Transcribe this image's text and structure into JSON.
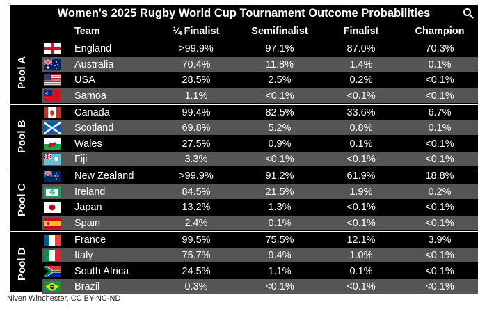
{
  "chart_data": {
    "type": "table",
    "title": "Women's 2025 Rugby World Cup Tournament Outcome Probabilities",
    "columns": [
      "Team",
      "¼ Finalist",
      "Semifinalist",
      "Finalist",
      "Champion"
    ],
    "pools": [
      {
        "name": "Pool A",
        "teams": [
          {
            "team": "England",
            "flag": "england-flag-icon",
            "values": [
              ">99.9%",
              "97.1%",
              "87.0%",
              "70.3%"
            ]
          },
          {
            "team": "Australia",
            "flag": "australia-flag-icon",
            "values": [
              "70.4%",
              "11.8%",
              "1.4%",
              "0.1%"
            ]
          },
          {
            "team": "USA",
            "flag": "usa-flag-icon",
            "values": [
              "28.5%",
              "2.5%",
              "0.2%",
              "<0.1%"
            ]
          },
          {
            "team": "Samoa",
            "flag": "samoa-flag-icon",
            "values": [
              "1.1%",
              "<0.1%",
              "<0.1%",
              "<0.1%"
            ]
          }
        ]
      },
      {
        "name": "Pool B",
        "teams": [
          {
            "team": "Canada",
            "flag": "canada-flag-icon",
            "values": [
              "99.4%",
              "82.5%",
              "33.6%",
              "6.7%"
            ]
          },
          {
            "team": "Scotland",
            "flag": "scotland-flag-icon",
            "values": [
              "69.8%",
              "5.2%",
              "0.8%",
              "0.1%"
            ]
          },
          {
            "team": "Wales",
            "flag": "wales-flag-icon",
            "values": [
              "27.5%",
              "0.9%",
              "0.1%",
              "<0.1%"
            ]
          },
          {
            "team": "Fiji",
            "flag": "fiji-flag-icon",
            "values": [
              "3.3%",
              "<0.1%",
              "<0.1%",
              "<0.1%"
            ]
          }
        ]
      },
      {
        "name": "Pool C",
        "teams": [
          {
            "team": "New Zealand",
            "flag": "new-zealand-flag-icon",
            "values": [
              ">99.9%",
              "91.2%",
              "61.9%",
              "18.8%"
            ]
          },
          {
            "team": "Ireland",
            "flag": "ireland-flag-icon",
            "values": [
              "84.5%",
              "21.5%",
              "1.9%",
              "0.2%"
            ]
          },
          {
            "team": "Japan",
            "flag": "japan-flag-icon",
            "values": [
              "13.2%",
              "1.3%",
              "<0.1%",
              "<0.1%"
            ]
          },
          {
            "team": "Spain",
            "flag": "spain-flag-icon",
            "values": [
              "2.4%",
              "0.1%",
              "<0.1%",
              "<0.1%"
            ]
          }
        ]
      },
      {
        "name": "Pool D",
        "teams": [
          {
            "team": "France",
            "flag": "france-flag-icon",
            "values": [
              "99.5%",
              "75.5%",
              "12.1%",
              "3.9%"
            ]
          },
          {
            "team": "Italy",
            "flag": "italy-flag-icon",
            "values": [
              "75.7%",
              "9.4%",
              "1.0%",
              "<0.1%"
            ]
          },
          {
            "team": "South Africa",
            "flag": "south-africa-flag-icon",
            "values": [
              "24.5%",
              "1.1%",
              "0.1%",
              "<0.1%"
            ]
          },
          {
            "team": "Brazil",
            "flag": "brazil-flag-icon",
            "values": [
              "0.3%",
              "<0.1%",
              "<0.1%",
              "<0.1%"
            ]
          }
        ]
      }
    ]
  },
  "credit": "Niven Winchester, CC BY-NC-ND",
  "colors": {
    "background": "#000000",
    "row_dark": "#000000",
    "row_light": "#555555",
    "text": "#ffffff"
  }
}
